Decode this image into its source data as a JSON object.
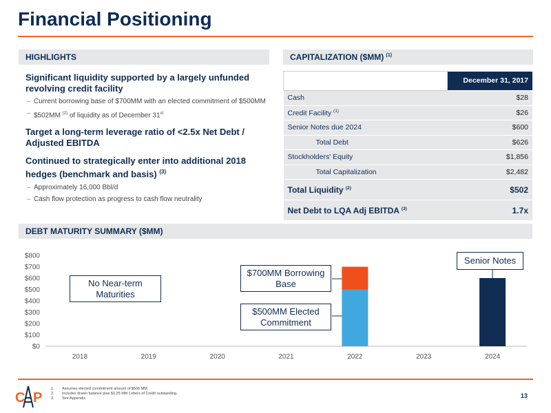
{
  "title": "Financial Positioning",
  "highlights": {
    "header": "HIGHLIGHTS",
    "p1_bold": "Significant liquidity supported by a largely unfunded revolving credit facility",
    "p1_sub1": "Current borrowing base of $700MM with an elected commitment of $500MM",
    "p1_sub2_a": "$502MM",
    "p1_sub2_sup": "(2)",
    "p1_sub2_b": "of liquidity as of December 31",
    "p1_sub2_st": "st",
    "p2_bold": "Target a long-term leverage ratio of <2.5x Net Debt / Adjusted EBITDA",
    "p3_bold": "Continued to strategically enter into additional 2018 hedges (benchmark and basis)",
    "p3_sup": "(3)",
    "p3_sub1": "Approximately 16,000 Bbl/d",
    "p3_sub2": "Cash flow protection as progress to cash flow neutrality"
  },
  "capitalization": {
    "header": "CAPITALIZATION ($MM)",
    "header_sup": "(1)",
    "column": "December 31, 2017",
    "rows": [
      {
        "label": "Cash",
        "sup": "",
        "value": "$28"
      },
      {
        "label": "Credit Facility",
        "sup": "(1)",
        "value": "$26"
      },
      {
        "label": "Senior Notes due 2024",
        "sup": "",
        "value": "$600"
      },
      {
        "label": "Total Debt",
        "sup": "",
        "value": "$626"
      },
      {
        "label": "Stockholders' Equity",
        "sup": "",
        "value": "$1,856"
      },
      {
        "label": "Total Capitalization",
        "sup": "",
        "value": "$2,482"
      },
      {
        "label": "Total Liquidity",
        "sup": "(2)",
        "value": "$502"
      },
      {
        "label": "Net Debt to LQA Adj EBITDA",
        "sup": "(3)",
        "value": "1.7x"
      }
    ]
  },
  "debt": {
    "header": "DEBT MATURITY SUMMARY ($MM)"
  },
  "chart_data": {
    "type": "bar",
    "categories": [
      "2018",
      "2019",
      "2020",
      "2021",
      "2022",
      "2023",
      "2024"
    ],
    "series": [
      {
        "name": "$500MM Elected Commitment",
        "values": [
          0,
          0,
          0,
          0,
          500,
          0,
          0
        ],
        "color": "#41a8df"
      },
      {
        "name": "$700MM Borrowing Base",
        "values": [
          0,
          0,
          0,
          0,
          200,
          0,
          0
        ],
        "color": "#f04e1c"
      },
      {
        "name": "Senior Notes",
        "values": [
          0,
          0,
          0,
          0,
          0,
          0,
          600
        ],
        "color": "#0f2c52"
      }
    ],
    "stacked": true,
    "ylim": [
      0,
      800
    ],
    "yticks": [
      "$0",
      "$100",
      "$200",
      "$300",
      "$400",
      "$500",
      "$600",
      "$700",
      "$800"
    ],
    "annotations": {
      "no_near_term": "No Near-term Maturities",
      "borrowing_base": "$700MM Borrowing Base",
      "elected": "$500MM Elected Commitment",
      "senior_notes": "Senior Notes"
    },
    "grid": false
  },
  "footnotes": [
    {
      "n": "1.",
      "text": "Assumes elected commitment amount of $500 MM."
    },
    {
      "n": "2.",
      "text": "Includes drawn balance plus $1.25 MM Letters of Credit outstanding."
    },
    {
      "n": "3.",
      "text": "See Appendix."
    }
  ],
  "page_number": "13",
  "colors": {
    "navy": "#0f2c52",
    "orange": "#f26522",
    "blue": "#41a8df",
    "grey": "#e6e7e9"
  }
}
